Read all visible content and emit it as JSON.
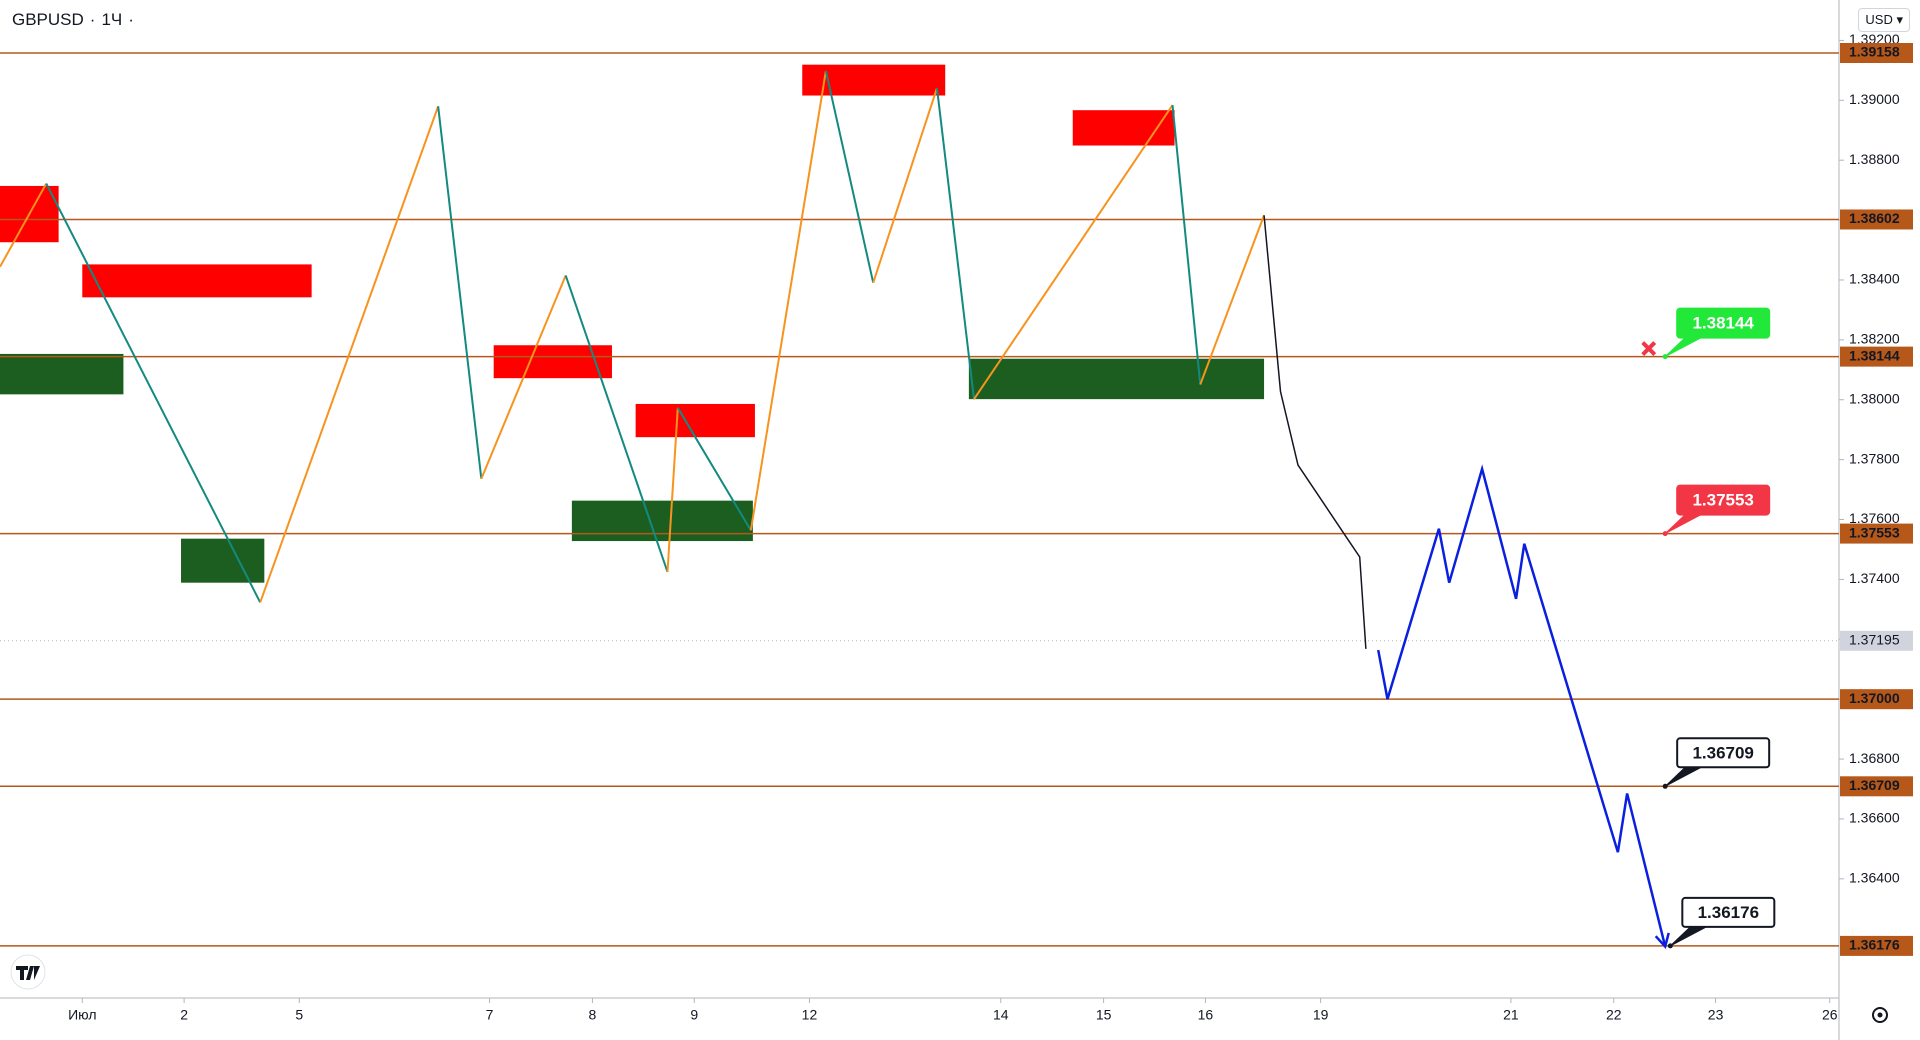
{
  "header": {
    "symbol": "GBPUSD",
    "separator": "·",
    "interval": "1Ч",
    "currency": "USD"
  },
  "chart_data": {
    "type": "price-map",
    "xlim": [
      -0.8,
      17.08
    ],
    "ylim": [
      1.36002,
      1.39335
    ],
    "yticks": [
      {
        "value": 1.392,
        "label": "1.39200"
      },
      {
        "value": 1.39,
        "label": "1.39000"
      },
      {
        "value": 1.388,
        "label": "1.38800"
      },
      {
        "value": 1.386,
        "label": "1.38600"
      },
      {
        "value": 1.384,
        "label": "1.38400"
      },
      {
        "value": 1.382,
        "label": "1.38200"
      },
      {
        "value": 1.38,
        "label": "1.38000"
      },
      {
        "value": 1.378,
        "label": "1.37800"
      },
      {
        "value": 1.376,
        "label": "1.37600"
      },
      {
        "value": 1.374,
        "label": "1.37400"
      },
      {
        "value": 1.372,
        "label": "1.37200"
      },
      {
        "value": 1.37,
        "label": "1.37000"
      },
      {
        "value": 1.368,
        "label": "1.36800"
      },
      {
        "value": 1.366,
        "label": "1.36600"
      },
      {
        "value": 1.364,
        "label": "1.36400"
      }
    ],
    "xticks": [
      {
        "value": 0,
        "label": "Июл"
      },
      {
        "value": 0.99,
        "label": "2"
      },
      {
        "value": 2.11,
        "label": "5"
      },
      {
        "value": 3.96,
        "label": "7"
      },
      {
        "value": 4.96,
        "label": "8"
      },
      {
        "value": 5.95,
        "label": "9"
      },
      {
        "value": 7.07,
        "label": "12"
      },
      {
        "value": 8.93,
        "label": "14"
      },
      {
        "value": 9.93,
        "label": "15"
      },
      {
        "value": 10.92,
        "label": "16"
      },
      {
        "value": 12.04,
        "label": "19"
      },
      {
        "value": 13.89,
        "label": "21"
      },
      {
        "value": 14.89,
        "label": "22"
      },
      {
        "value": 15.88,
        "label": "23"
      },
      {
        "value": 16.99,
        "label": "26"
      }
    ],
    "levels": [
      {
        "value": 1.39158,
        "label": "1.39158"
      },
      {
        "value": 1.38602,
        "label": "1.38602"
      },
      {
        "value": 1.38144,
        "label": "1.38144"
      },
      {
        "value": 1.37553,
        "label": "1.37553"
      },
      {
        "value": 1.37,
        "label": "1.37000"
      },
      {
        "value": 1.36709,
        "label": "1.36709"
      },
      {
        "value": 1.36176,
        "label": "1.36176"
      }
    ],
    "level_color": "#b5581a",
    "last_price": {
      "value": 1.37195,
      "label": "1.37195",
      "color": "#b2b5be"
    },
    "zones": [
      {
        "x0": -0.8,
        "x1": -0.23,
        "top": 1.38714,
        "bottom": 1.38526,
        "color": "#ff0000"
      },
      {
        "x0": 0,
        "x1": 2.23,
        "top": 1.38452,
        "bottom": 1.38342,
        "color": "#ff0000"
      },
      {
        "x0": -0.8,
        "x1": 0.4,
        "top": 1.38153,
        "bottom": 1.38018,
        "color": "#1b5e20"
      },
      {
        "x0": 0.96,
        "x1": 1.77,
        "top": 1.37536,
        "bottom": 1.37389,
        "color": "#1b5e20"
      },
      {
        "x0": 4.0,
        "x1": 5.15,
        "top": 1.38182,
        "bottom": 1.38072,
        "color": "#ff0000"
      },
      {
        "x0": 4.76,
        "x1": 6.52,
        "top": 1.37663,
        "bottom": 1.37528,
        "color": "#1b5e20"
      },
      {
        "x0": 5.38,
        "x1": 6.54,
        "top": 1.37986,
        "bottom": 1.37875,
        "color": "#ff0000"
      },
      {
        "x0": 7.0,
        "x1": 8.39,
        "top": 1.39119,
        "bottom": 1.39016,
        "color": "#ff0000"
      },
      {
        "x0": 9.63,
        "x1": 10.62,
        "top": 1.38967,
        "bottom": 1.38849,
        "color": "#ff0000"
      },
      {
        "x0": 8.62,
        "x1": 11.49,
        "top": 1.38137,
        "bottom": 1.38002,
        "color": "#1b5e20"
      }
    ],
    "zigzag": {
      "x": [
        -0.8,
        -0.35,
        1.73,
        3.46,
        3.88,
        4.7,
        5.69,
        5.79,
        6.5,
        7.23,
        7.69,
        8.31,
        8.67,
        10.6,
        10.87,
        11.49
      ],
      "y": [
        1.38444,
        1.38722,
        1.37323,
        1.3898,
        1.37736,
        1.38415,
        1.37425,
        1.37973,
        1.37564,
        1.39098,
        1.38391,
        1.39041,
        1.38002,
        1.38984,
        1.38051,
        1.38616
      ],
      "up_color": "#f7931e",
      "down_color": "#138a80"
    },
    "recent_path": {
      "x": [
        11.49,
        11.65,
        11.82,
        12.06,
        12.3,
        12.42,
        12.48
      ],
      "y": [
        1.38616,
        1.38027,
        1.37782,
        1.37659,
        1.37536,
        1.37475,
        1.37168
      ],
      "color": "#131722"
    },
    "projection": {
      "x": [
        12.6,
        12.69,
        13.19,
        13.29,
        13.61,
        13.94,
        14.02,
        14.93,
        15.02,
        15.39
      ],
      "y": [
        1.37164,
        1.37,
        1.37569,
        1.37389,
        1.37769,
        1.37335,
        1.37519,
        1.36489,
        1.36685,
        1.36174
      ],
      "color": "#0a1fe0"
    },
    "marker": {
      "x": 15.23,
      "y": 1.38171,
      "color": "#f23645"
    },
    "callouts": [
      {
        "x": 15.39,
        "value": 1.38144,
        "fill": "#22e83a",
        "border": "#22e83a",
        "text_color": "#ffffff"
      },
      {
        "x": 15.39,
        "value": 1.37553,
        "fill": "#f23645",
        "border": "#f23645",
        "text_color": "#ffffff"
      },
      {
        "x": 15.39,
        "value": 1.36709,
        "fill": "#ffffff",
        "border": "#131722",
        "text_color": "#131722"
      },
      {
        "x": 15.44,
        "value": 1.36176,
        "fill": "#ffffff",
        "border": "#131722",
        "text_color": "#131722"
      }
    ]
  }
}
